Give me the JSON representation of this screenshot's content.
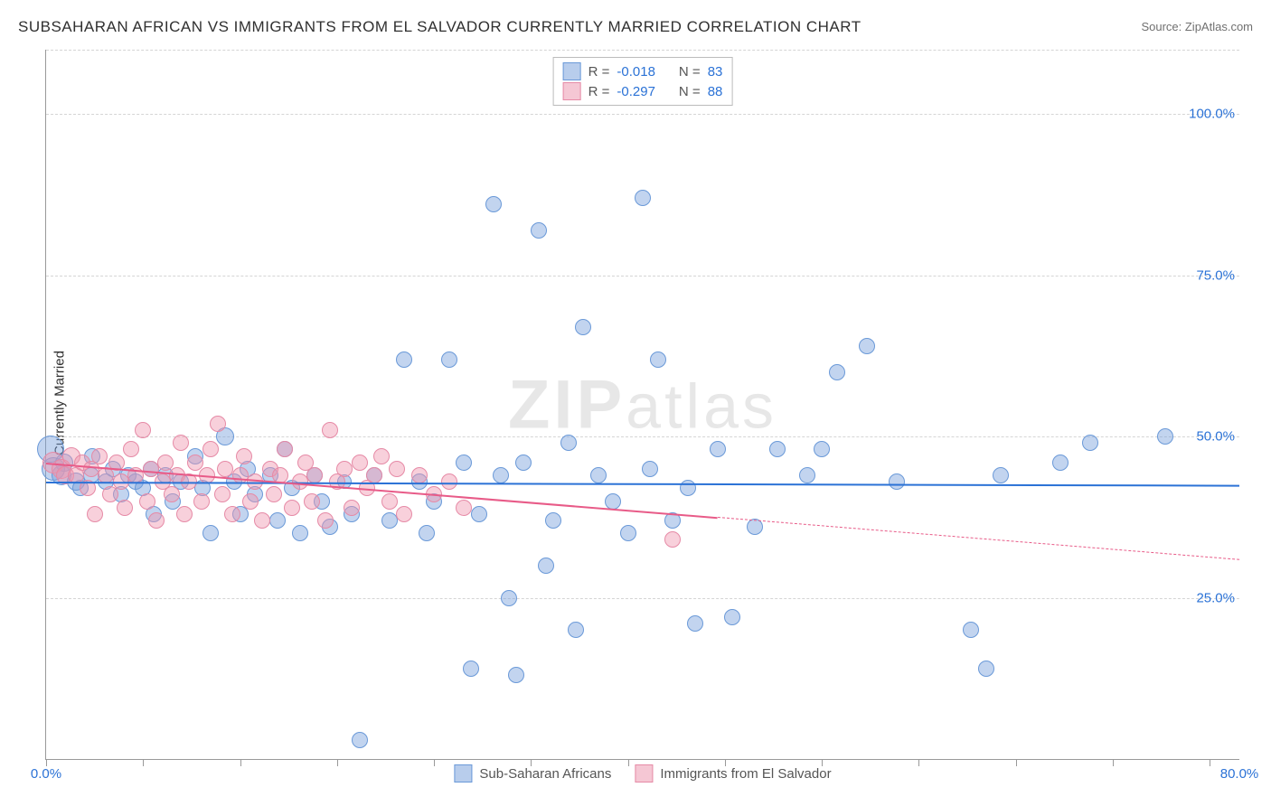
{
  "title": "SUBSAHARAN AFRICAN VS IMMIGRANTS FROM EL SALVADOR CURRENTLY MARRIED CORRELATION CHART",
  "source": "Source: ZipAtlas.com",
  "ylabel": "Currently Married",
  "watermark_a": "ZIP",
  "watermark_b": "atlas",
  "chart": {
    "type": "scatter",
    "xlim": [
      0,
      80
    ],
    "ylim": [
      0,
      110
    ],
    "yticks": [
      {
        "v": 25,
        "label": "25.0%"
      },
      {
        "v": 50,
        "label": "50.0%"
      },
      {
        "v": 75,
        "label": "75.0%"
      },
      {
        "v": 100,
        "label": "100.0%"
      }
    ],
    "xticks": [
      {
        "v": 0,
        "label": "0.0%"
      },
      {
        "v": 80,
        "label": "80.0%"
      }
    ],
    "xtick_marks": [
      0,
      6.5,
      13,
      19.5,
      26,
      32.5,
      39,
      45.5,
      52,
      58.5,
      65,
      71.5,
      78
    ],
    "grid_color": "#d5d5d5",
    "axis_color": "#999999",
    "background_color": "#ffffff",
    "ytick_color": "#2b72d6",
    "xtick_color": "#2b72d6",
    "series": [
      {
        "key": "a",
        "name": "Sub-Saharan Africans",
        "fill": "rgba(120,160,220,.45)",
        "stroke": "#6a99d8",
        "swatch_fill": "#b8cdec",
        "swatch_stroke": "#6a99d8",
        "R": "-0.018",
        "N": "83",
        "trend": {
          "x1": 0,
          "y1": 43,
          "x2": 80,
          "y2": 42.5,
          "color": "#2b72d6",
          "dash_from_x": null
        },
        "points": [
          {
            "x": 0.3,
            "y": 48,
            "r": 14
          },
          {
            "x": 0.5,
            "y": 45,
            "r": 12
          },
          {
            "x": 1,
            "y": 44,
            "r": 10
          },
          {
            "x": 1.2,
            "y": 46,
            "r": 9
          },
          {
            "x": 2,
            "y": 43,
            "r": 9
          },
          {
            "x": 2.3,
            "y": 42,
            "r": 8
          },
          {
            "x": 3,
            "y": 44,
            "r": 8
          },
          {
            "x": 3.1,
            "y": 47,
            "r": 8
          },
          {
            "x": 4,
            "y": 43,
            "r": 8
          },
          {
            "x": 4.5,
            "y": 45,
            "r": 8
          },
          {
            "x": 5,
            "y": 41,
            "r": 8
          },
          {
            "x": 5.5,
            "y": 44,
            "r": 8
          },
          {
            "x": 6,
            "y": 43,
            "r": 8
          },
          {
            "x": 6.5,
            "y": 42,
            "r": 8
          },
          {
            "x": 7,
            "y": 45,
            "r": 8
          },
          {
            "x": 7.2,
            "y": 38,
            "r": 8
          },
          {
            "x": 8,
            "y": 44,
            "r": 8
          },
          {
            "x": 8.5,
            "y": 40,
            "r": 8
          },
          {
            "x": 9,
            "y": 43,
            "r": 8
          },
          {
            "x": 10,
            "y": 47,
            "r": 8
          },
          {
            "x": 10.5,
            "y": 42,
            "r": 8
          },
          {
            "x": 11,
            "y": 35,
            "r": 8
          },
          {
            "x": 12,
            "y": 50,
            "r": 9
          },
          {
            "x": 12.6,
            "y": 43,
            "r": 8
          },
          {
            "x": 13,
            "y": 38,
            "r": 8
          },
          {
            "x": 13.5,
            "y": 45,
            "r": 8
          },
          {
            "x": 14,
            "y": 41,
            "r": 8
          },
          {
            "x": 15,
            "y": 44,
            "r": 8
          },
          {
            "x": 15.5,
            "y": 37,
            "r": 8
          },
          {
            "x": 16,
            "y": 48,
            "r": 8
          },
          {
            "x": 16.5,
            "y": 42,
            "r": 8
          },
          {
            "x": 17,
            "y": 35,
            "r": 8
          },
          {
            "x": 18,
            "y": 44,
            "r": 8
          },
          {
            "x": 18.5,
            "y": 40,
            "r": 8
          },
          {
            "x": 19,
            "y": 36,
            "r": 8
          },
          {
            "x": 20,
            "y": 43,
            "r": 7
          },
          {
            "x": 20.5,
            "y": 38,
            "r": 8
          },
          {
            "x": 21,
            "y": 3,
            "r": 8
          },
          {
            "x": 22,
            "y": 44,
            "r": 8
          },
          {
            "x": 23,
            "y": 37,
            "r": 8
          },
          {
            "x": 24,
            "y": 62,
            "r": 8
          },
          {
            "x": 25,
            "y": 43,
            "r": 8
          },
          {
            "x": 25.5,
            "y": 35,
            "r": 8
          },
          {
            "x": 26,
            "y": 40,
            "r": 8
          },
          {
            "x": 27,
            "y": 62,
            "r": 8
          },
          {
            "x": 28,
            "y": 46,
            "r": 8
          },
          {
            "x": 28.5,
            "y": 14,
            "r": 8
          },
          {
            "x": 29,
            "y": 38,
            "r": 8
          },
          {
            "x": 30,
            "y": 86,
            "r": 8
          },
          {
            "x": 30.5,
            "y": 44,
            "r": 8
          },
          {
            "x": 31,
            "y": 25,
            "r": 8
          },
          {
            "x": 31.5,
            "y": 13,
            "r": 8
          },
          {
            "x": 32,
            "y": 46,
            "r": 8
          },
          {
            "x": 33,
            "y": 82,
            "r": 8
          },
          {
            "x": 33.5,
            "y": 30,
            "r": 8
          },
          {
            "x": 34,
            "y": 37,
            "r": 8
          },
          {
            "x": 35,
            "y": 49,
            "r": 8
          },
          {
            "x": 35.5,
            "y": 20,
            "r": 8
          },
          {
            "x": 36,
            "y": 67,
            "r": 8
          },
          {
            "x": 37,
            "y": 44,
            "r": 8
          },
          {
            "x": 38,
            "y": 40,
            "r": 8
          },
          {
            "x": 39,
            "y": 35,
            "r": 8
          },
          {
            "x": 40,
            "y": 87,
            "r": 8
          },
          {
            "x": 40.5,
            "y": 45,
            "r": 8
          },
          {
            "x": 41,
            "y": 62,
            "r": 8
          },
          {
            "x": 42,
            "y": 37,
            "r": 8
          },
          {
            "x": 43,
            "y": 42,
            "r": 8
          },
          {
            "x": 43.5,
            "y": 21,
            "r": 8
          },
          {
            "x": 45,
            "y": 48,
            "r": 8
          },
          {
            "x": 46,
            "y": 22,
            "r": 8
          },
          {
            "x": 47.5,
            "y": 36,
            "r": 8
          },
          {
            "x": 49,
            "y": 48,
            "r": 8
          },
          {
            "x": 51,
            "y": 44,
            "r": 8
          },
          {
            "x": 52,
            "y": 48,
            "r": 8
          },
          {
            "x": 53,
            "y": 60,
            "r": 8
          },
          {
            "x": 55,
            "y": 64,
            "r": 8
          },
          {
            "x": 57,
            "y": 43,
            "r": 8
          },
          {
            "x": 62,
            "y": 20,
            "r": 8
          },
          {
            "x": 63,
            "y": 14,
            "r": 8
          },
          {
            "x": 64,
            "y": 44,
            "r": 8
          },
          {
            "x": 68,
            "y": 46,
            "r": 8
          },
          {
            "x": 70,
            "y": 49,
            "r": 8
          },
          {
            "x": 75,
            "y": 50,
            "r": 8
          }
        ]
      },
      {
        "key": "b",
        "name": "Immigrants from El Salvador",
        "fill": "rgba(240,150,175,.45)",
        "stroke": "#e68aa6",
        "swatch_fill": "#f5c7d4",
        "swatch_stroke": "#e68aa6",
        "R": "-0.297",
        "N": "88",
        "trend": {
          "x1": 0,
          "y1": 46,
          "x2": 80,
          "y2": 31,
          "color": "#e85b88",
          "dash_from_x": 45
        },
        "points": [
          {
            "x": 0.5,
            "y": 46,
            "r": 11
          },
          {
            "x": 1,
            "y": 45,
            "r": 10
          },
          {
            "x": 1.3,
            "y": 44,
            "r": 9
          },
          {
            "x": 1.7,
            "y": 47,
            "r": 9
          },
          {
            "x": 2,
            "y": 44,
            "r": 8
          },
          {
            "x": 2.4,
            "y": 46,
            "r": 8
          },
          {
            "x": 2.8,
            "y": 42,
            "r": 8
          },
          {
            "x": 3,
            "y": 45,
            "r": 8
          },
          {
            "x": 3.3,
            "y": 38,
            "r": 8
          },
          {
            "x": 3.6,
            "y": 47,
            "r": 8
          },
          {
            "x": 4,
            "y": 44,
            "r": 8
          },
          {
            "x": 4.3,
            "y": 41,
            "r": 8
          },
          {
            "x": 4.7,
            "y": 46,
            "r": 8
          },
          {
            "x": 5,
            "y": 43,
            "r": 8
          },
          {
            "x": 5.3,
            "y": 39,
            "r": 8
          },
          {
            "x": 5.7,
            "y": 48,
            "r": 8
          },
          {
            "x": 6,
            "y": 44,
            "r": 8
          },
          {
            "x": 6.5,
            "y": 51,
            "r": 8
          },
          {
            "x": 6.8,
            "y": 40,
            "r": 8
          },
          {
            "x": 7,
            "y": 45,
            "r": 8
          },
          {
            "x": 7.4,
            "y": 37,
            "r": 8
          },
          {
            "x": 7.8,
            "y": 43,
            "r": 8
          },
          {
            "x": 8,
            "y": 46,
            "r": 8
          },
          {
            "x": 8.4,
            "y": 41,
            "r": 8
          },
          {
            "x": 8.8,
            "y": 44,
            "r": 8
          },
          {
            "x": 9,
            "y": 49,
            "r": 8
          },
          {
            "x": 9.3,
            "y": 38,
            "r": 8
          },
          {
            "x": 9.6,
            "y": 43,
            "r": 8
          },
          {
            "x": 10,
            "y": 46,
            "r": 8
          },
          {
            "x": 10.4,
            "y": 40,
            "r": 8
          },
          {
            "x": 10.8,
            "y": 44,
            "r": 8
          },
          {
            "x": 11,
            "y": 48,
            "r": 8
          },
          {
            "x": 11.5,
            "y": 52,
            "r": 8
          },
          {
            "x": 11.8,
            "y": 41,
            "r": 8
          },
          {
            "x": 12,
            "y": 45,
            "r": 8
          },
          {
            "x": 12.5,
            "y": 38,
            "r": 8
          },
          {
            "x": 13,
            "y": 44,
            "r": 8
          },
          {
            "x": 13.3,
            "y": 47,
            "r": 8
          },
          {
            "x": 13.7,
            "y": 40,
            "r": 8
          },
          {
            "x": 14,
            "y": 43,
            "r": 8
          },
          {
            "x": 14.5,
            "y": 37,
            "r": 8
          },
          {
            "x": 15,
            "y": 45,
            "r": 8
          },
          {
            "x": 15.3,
            "y": 41,
            "r": 8
          },
          {
            "x": 15.7,
            "y": 44,
            "r": 8
          },
          {
            "x": 16,
            "y": 48,
            "r": 8
          },
          {
            "x": 16.5,
            "y": 39,
            "r": 8
          },
          {
            "x": 17,
            "y": 43,
            "r": 8
          },
          {
            "x": 17.4,
            "y": 46,
            "r": 8
          },
          {
            "x": 17.8,
            "y": 40,
            "r": 8
          },
          {
            "x": 18,
            "y": 44,
            "r": 8
          },
          {
            "x": 18.7,
            "y": 37,
            "r": 8
          },
          {
            "x": 19,
            "y": 51,
            "r": 8
          },
          {
            "x": 19.5,
            "y": 43,
            "r": 8
          },
          {
            "x": 20,
            "y": 45,
            "r": 8
          },
          {
            "x": 20.5,
            "y": 39,
            "r": 8
          },
          {
            "x": 21,
            "y": 46,
            "r": 8
          },
          {
            "x": 21.5,
            "y": 42,
            "r": 8
          },
          {
            "x": 22,
            "y": 44,
            "r": 8
          },
          {
            "x": 22.5,
            "y": 47,
            "r": 8
          },
          {
            "x": 23,
            "y": 40,
            "r": 8
          },
          {
            "x": 23.5,
            "y": 45,
            "r": 8
          },
          {
            "x": 24,
            "y": 38,
            "r": 8
          },
          {
            "x": 25,
            "y": 44,
            "r": 8
          },
          {
            "x": 26,
            "y": 41,
            "r": 8
          },
          {
            "x": 27,
            "y": 43,
            "r": 8
          },
          {
            "x": 28,
            "y": 39,
            "r": 8
          },
          {
            "x": 42,
            "y": 34,
            "r": 8
          }
        ]
      }
    ]
  },
  "legend_top": [
    {
      "series": "a",
      "R_label": "R =",
      "N_label": "N ="
    },
    {
      "series": "b",
      "R_label": "R =",
      "N_label": "N ="
    }
  ]
}
